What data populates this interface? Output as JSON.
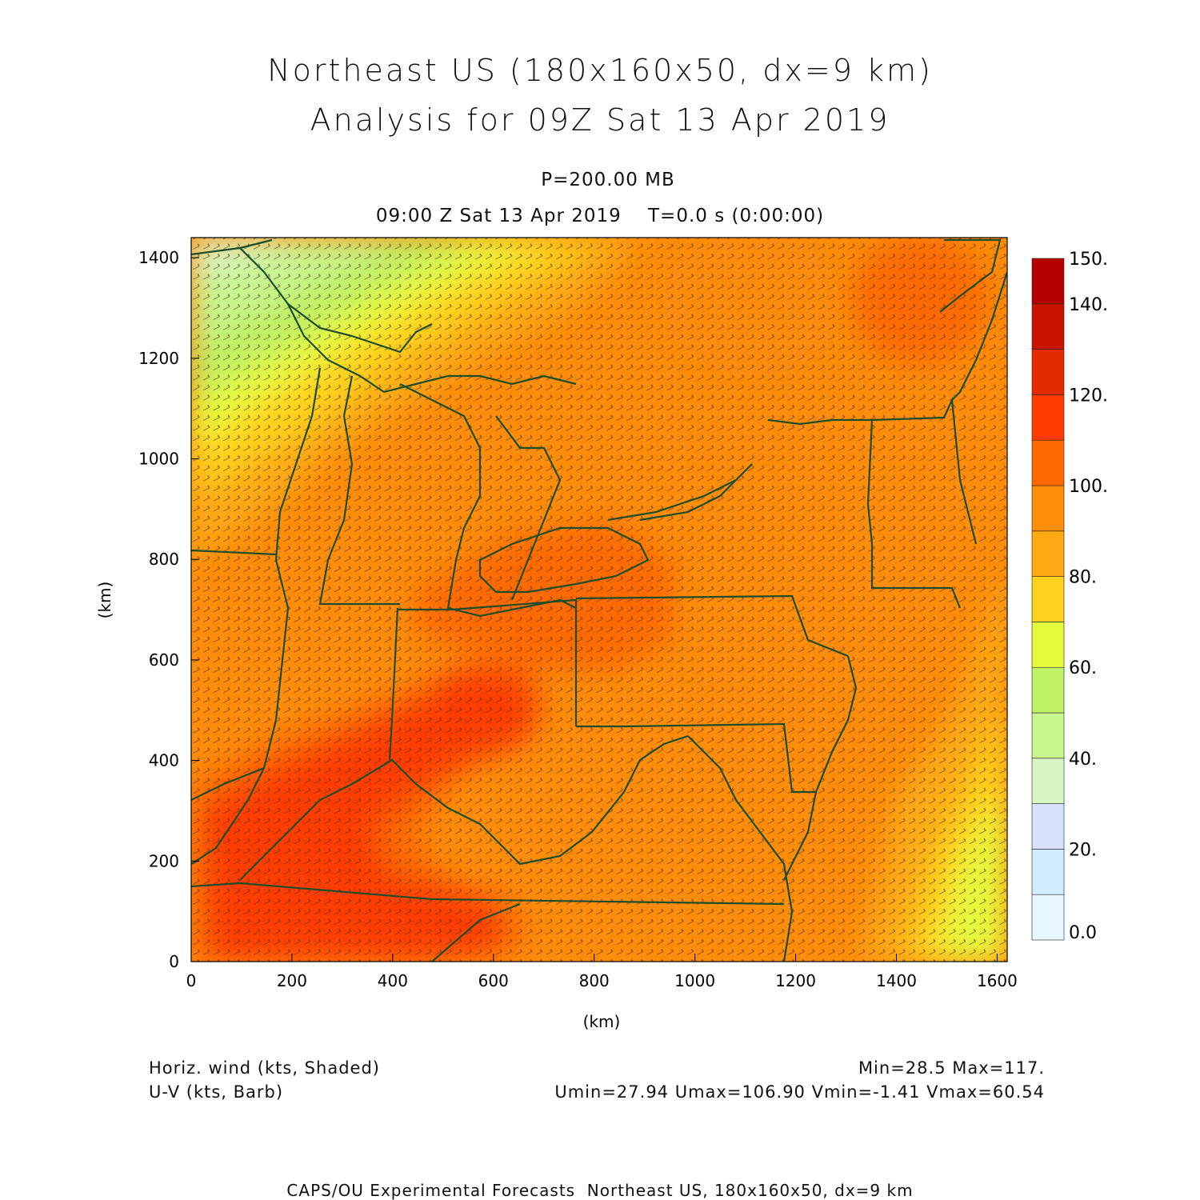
{
  "title": {
    "line1": "Northeast US (180x160x50, dx=9 km)",
    "line2": "Analysis for 09Z Sat 13 Apr 2019"
  },
  "level": "P=200.00 MB",
  "valid_time": "09:00 Z Sat 13 Apr 2019    T=0.0 s (0:00:00)",
  "axes": {
    "x_label": "(km)",
    "y_label": "(km)",
    "x_range": [
      0,
      1620
    ],
    "y_range": [
      0,
      1440
    ],
    "x_ticks": [
      "0",
      "200",
      "400",
      "600",
      "800",
      "1000",
      "1200",
      "1400",
      "1600"
    ],
    "y_ticks": [
      "0",
      "200",
      "400",
      "600",
      "800",
      "1000",
      "1200",
      "1400"
    ]
  },
  "colorbar": {
    "labels": [
      "0.0",
      "20.",
      "40.",
      "60.",
      "80.",
      "100.",
      "120.",
      "140.",
      "150."
    ],
    "colors": [
      "#e6f7ff",
      "#d2ecff",
      "#d6e2ff",
      "#d8f5c6",
      "#c8f58e",
      "#c0f064",
      "#e6fa3c",
      "#ffd21e",
      "#ffaa14",
      "#ff8c0a",
      "#ff6a00",
      "#ff3c00",
      "#e62a00",
      "#c81400",
      "#b40000"
    ]
  },
  "field_label": "Horiz. wind (kts, Shaded)",
  "vector_label": "U-V (kts, Barb)",
  "min_max": "Min=28.5 Max=117.",
  "uv_stats": "Umin=27.94 Umax=106.90 Vmin=-1.41 Vmax=60.54",
  "footer": "CAPS/OU Experimental Forecasts  Northeast US, 180x160x50, dx=9 km",
  "colors": {
    "border_lines": "#1e4d2b",
    "background_field": "#ff8c0a"
  }
}
